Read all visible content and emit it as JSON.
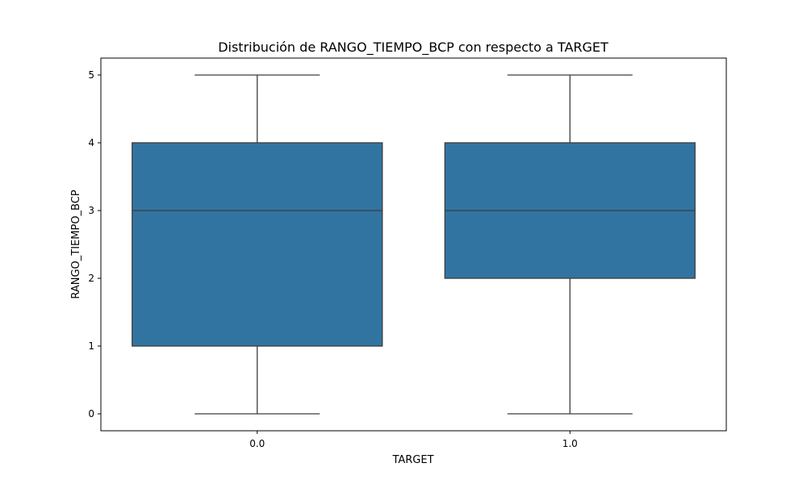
{
  "chart_data": {
    "type": "box",
    "title": "Distribución de RANGO_TIEMPO_BCP con respecto a TARGET",
    "xlabel": "TARGET",
    "ylabel": "RANGO_TIEMPO_BCP",
    "categories": [
      "0.0",
      "1.0"
    ],
    "boxes": [
      {
        "category": "0.0",
        "whisker_low": 0,
        "q1": 1,
        "median": 3,
        "q3": 4,
        "whisker_high": 5
      },
      {
        "category": "1.0",
        "whisker_low": 0,
        "q1": 2,
        "median": 3,
        "q3": 4,
        "whisker_high": 5
      }
    ],
    "ylim": [
      -0.25,
      5.25
    ],
    "yticks": [
      0,
      1,
      2,
      3,
      4,
      5
    ],
    "grid": false,
    "legend": "none",
    "colors": {
      "box_fill": "#3274a1",
      "line": "#3d3d3d"
    }
  }
}
